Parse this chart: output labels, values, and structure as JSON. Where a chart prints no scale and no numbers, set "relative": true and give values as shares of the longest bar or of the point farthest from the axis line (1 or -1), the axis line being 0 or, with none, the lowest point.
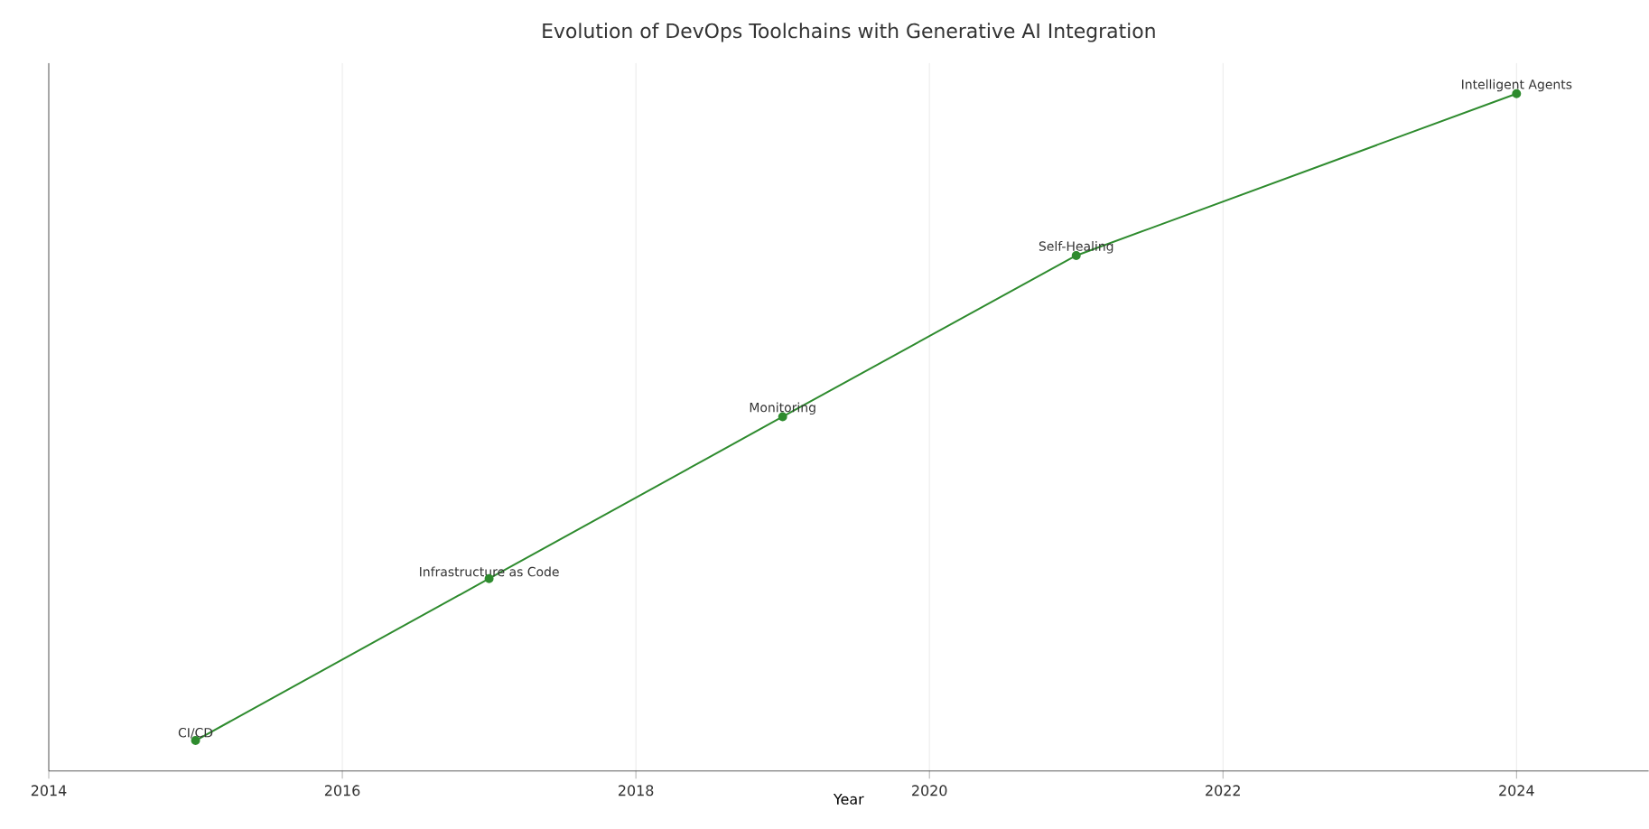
{
  "chart_data": {
    "type": "line",
    "title": "Evolution of DevOps Toolchains with Generative AI Integration",
    "xlabel": "Year",
    "x": [
      2015,
      2017,
      2019,
      2021,
      2024
    ],
    "series": [
      {
        "color": "#2e8b2e",
        "values": [
          0.045,
          0.284,
          0.523,
          0.761,
          1.0
        ]
      }
    ],
    "relative": true,
    "xlim": [
      2014,
      2024.9
    ],
    "xticks": [
      2014,
      2016,
      2018,
      2020,
      2022,
      2024
    ],
    "grid": "x",
    "marker": "circle",
    "line_style": "solid",
    "annotations": [
      {
        "text": "CI/CD",
        "x": 2015,
        "y": 0.045
      },
      {
        "text": "Infrastructure as Code",
        "x": 2017,
        "y": 0.284
      },
      {
        "text": "Monitoring",
        "x": 2019,
        "y": 0.523
      },
      {
        "text": "Self-Healing",
        "x": 2021,
        "y": 0.761
      },
      {
        "text": "Intelligent Agents",
        "x": 2024,
        "y": 1.0
      }
    ]
  }
}
